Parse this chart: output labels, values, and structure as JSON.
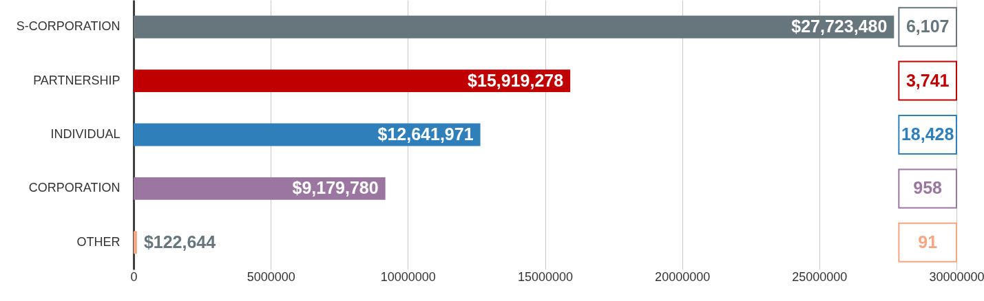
{
  "chart_data": {
    "type": "bar",
    "orientation": "horizontal",
    "categories": [
      "S-CORPORATION",
      "PARTNERSHIP",
      "INDIVIDUAL",
      "CORPORATION",
      "OTHER"
    ],
    "values": [
      27723480,
      15919278,
      12641971,
      9179780,
      122644
    ],
    "colors": [
      "#67757d",
      "#c00000",
      "#2e7fba",
      "#9b76a0",
      "#f4a582"
    ],
    "value_labels": [
      "$27,723,480",
      "$15,919,278",
      "$12,641,971",
      "$9,179,780",
      "$122,644"
    ],
    "xlim": [
      0,
      30000000
    ],
    "xticks": [
      0,
      5000000,
      10000000,
      15000000,
      20000000,
      25000000,
      30000000
    ],
    "grid": "x",
    "annotations": [
      "6,107",
      "3,741",
      "18,428",
      "958",
      "91"
    ]
  }
}
